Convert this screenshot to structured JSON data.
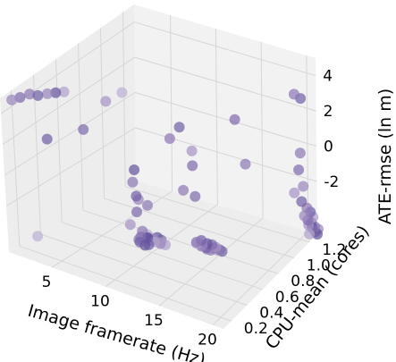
{
  "chart_data": {
    "type": "scatter3d",
    "x_axis": {
      "label": "Image framerate (Hz)",
      "ticks": [
        5,
        10,
        15,
        20
      ],
      "range": [
        1,
        21
      ]
    },
    "y_axis": {
      "label": "CPU-mean (cores)",
      "ticks": [
        0.2,
        0.4,
        0.6,
        0.8,
        1.0,
        1.2
      ],
      "range": [
        0.1,
        1.3
      ]
    },
    "z_axis": {
      "label": "ATE-rmse (ln m)",
      "ticks": [
        -2,
        0,
        2,
        4
      ],
      "range": [
        -5,
        5
      ]
    },
    "grid": true,
    "colors": {
      "point_dark": "#4a3f8f",
      "point_mid": "#8f78b5",
      "point_light": "#c9bfdc",
      "pane": "#ededed",
      "pane_side": "#f2f2f2",
      "grid": "#d6d6d6"
    },
    "points": [
      [
        1,
        0.2,
        4.4,
        0.6
      ],
      [
        1.6,
        0.22,
        4.6,
        0.4
      ],
      [
        2.2,
        0.25,
        4.8,
        0.5
      ],
      [
        3,
        0.25,
        4.9,
        0.3
      ],
      [
        3.6,
        0.28,
        5.0,
        0.6
      ],
      [
        4.2,
        0.3,
        5.1,
        0.2
      ],
      [
        4.8,
        0.32,
        5.2,
        0.8
      ],
      [
        4,
        0.22,
        2.5,
        0.3
      ],
      [
        8,
        0.4,
        4.9,
        0.7
      ],
      [
        8.8,
        0.48,
        5.2,
        0.9
      ],
      [
        6.5,
        0.32,
        3.2,
        0.4
      ],
      [
        9,
        0.55,
        0.1,
        0.2
      ],
      [
        8.8,
        0.55,
        -0.7,
        0.5
      ],
      [
        9.1,
        0.55,
        -1.5,
        0.3
      ],
      [
        8.8,
        0.6,
        -2.0,
        0.6
      ],
      [
        8.6,
        0.6,
        -2.8,
        0.4
      ],
      [
        9.5,
        0.62,
        -2.3,
        0.5
      ],
      [
        8.4,
        0.55,
        -3.4,
        0.7
      ],
      [
        8.9,
        0.62,
        -4.0,
        0.5
      ],
      [
        9.4,
        0.62,
        -4.3,
        0.2
      ],
      [
        8.7,
        0.62,
        -4.4,
        0.4
      ],
      [
        9.1,
        0.65,
        -4.5,
        0.1
      ],
      [
        8.8,
        0.6,
        -4.6,
        0.3
      ],
      [
        9.6,
        0.66,
        -4.5,
        0.6
      ],
      [
        9.3,
        0.6,
        -4.7,
        0.2
      ],
      [
        8.5,
        0.62,
        -4.6,
        0.5
      ],
      [
        9.8,
        0.65,
        -4.6,
        0.8
      ],
      [
        8.9,
        0.68,
        -4.8,
        0.4
      ],
      [
        10.1,
        0.68,
        -4.7,
        0.7
      ],
      [
        9.2,
        0.65,
        -4.9,
        0.3
      ],
      [
        8.6,
        0.7,
        -4.6,
        0.9
      ],
      [
        9.9,
        0.7,
        -4.9,
        0.6
      ],
      [
        9.4,
        0.72,
        -4.7,
        0.2
      ],
      [
        8.8,
        0.72,
        -5.0,
        0.5
      ],
      [
        10.2,
        0.72,
        -5.0,
        0.8
      ],
      [
        9.6,
        0.74,
        -4.9,
        0.4
      ],
      [
        3,
        0.18,
        -3.8,
        0.9
      ],
      [
        13,
        0.62,
        3.2,
        0.3
      ],
      [
        12,
        0.62,
        2.3,
        0.5
      ],
      [
        13.8,
        0.66,
        1.7,
        0.7
      ],
      [
        13.8,
        0.66,
        0.8,
        0.4
      ],
      [
        12.8,
        0.66,
        -0.9,
        0.5
      ],
      [
        13.6,
        0.7,
        -1.3,
        0.4
      ],
      [
        13.9,
        0.72,
        -4.0,
        0.3
      ],
      [
        13.4,
        0.72,
        -4.2,
        0.5
      ],
      [
        14.3,
        0.74,
        -4.2,
        0.2
      ],
      [
        13.8,
        0.74,
        -4.4,
        0.6
      ],
      [
        14.6,
        0.76,
        -4.3,
        0.4
      ],
      [
        13.2,
        0.74,
        -4.4,
        0.8
      ],
      [
        14,
        0.76,
        -4.6,
        0.3
      ],
      [
        14.8,
        0.78,
        -4.5,
        0.7
      ],
      [
        13.5,
        0.76,
        -4.6,
        0.5
      ],
      [
        14.4,
        0.8,
        -4.7,
        0.2
      ],
      [
        13.9,
        0.78,
        -4.8,
        0.6
      ],
      [
        15,
        0.8,
        -4.7,
        0.4
      ],
      [
        14.6,
        0.82,
        -4.9,
        0.8
      ],
      [
        14.1,
        0.8,
        -4.9,
        0.5
      ],
      [
        14.9,
        0.84,
        -5.0,
        0.3
      ],
      [
        16.2,
        0.88,
        2.9,
        0.4
      ],
      [
        17,
        0.9,
        0.3,
        0.5
      ],
      [
        20,
        1.15,
        3.6,
        0.5
      ],
      [
        20.6,
        1.16,
        3.4,
        0.3
      ],
      [
        20.3,
        1.18,
        0.1,
        0.5
      ],
      [
        20.1,
        1.18,
        -0.9,
        0.4
      ],
      [
        20.4,
        1.2,
        -1.9,
        0.6
      ],
      [
        20.2,
        1.2,
        -2.8,
        0.3
      ],
      [
        19.6,
        1.18,
        -2.3,
        0.7
      ],
      [
        20.6,
        1.22,
        -3.2,
        0.5
      ],
      [
        20.8,
        1.24,
        -3.5,
        0.3
      ],
      [
        20.3,
        1.22,
        -3.7,
        0.6
      ],
      [
        21,
        1.25,
        -3.8,
        0.8
      ],
      [
        20.5,
        1.24,
        -4.0,
        0.4
      ],
      [
        20.7,
        1.26,
        -4.2,
        0.2
      ],
      [
        20.4,
        1.26,
        -4.4,
        0.7
      ],
      [
        20.9,
        1.28,
        -4.5,
        0.5
      ],
      [
        20.6,
        1.28,
        -4.6,
        0.3
      ],
      [
        21.1,
        1.3,
        -4.7,
        0.6
      ],
      [
        20.8,
        1.3,
        -4.9,
        0.4
      ],
      [
        20.3,
        1.28,
        -5.0,
        0.8
      ],
      [
        21,
        1.3,
        -5.0,
        0.2
      ]
    ]
  }
}
